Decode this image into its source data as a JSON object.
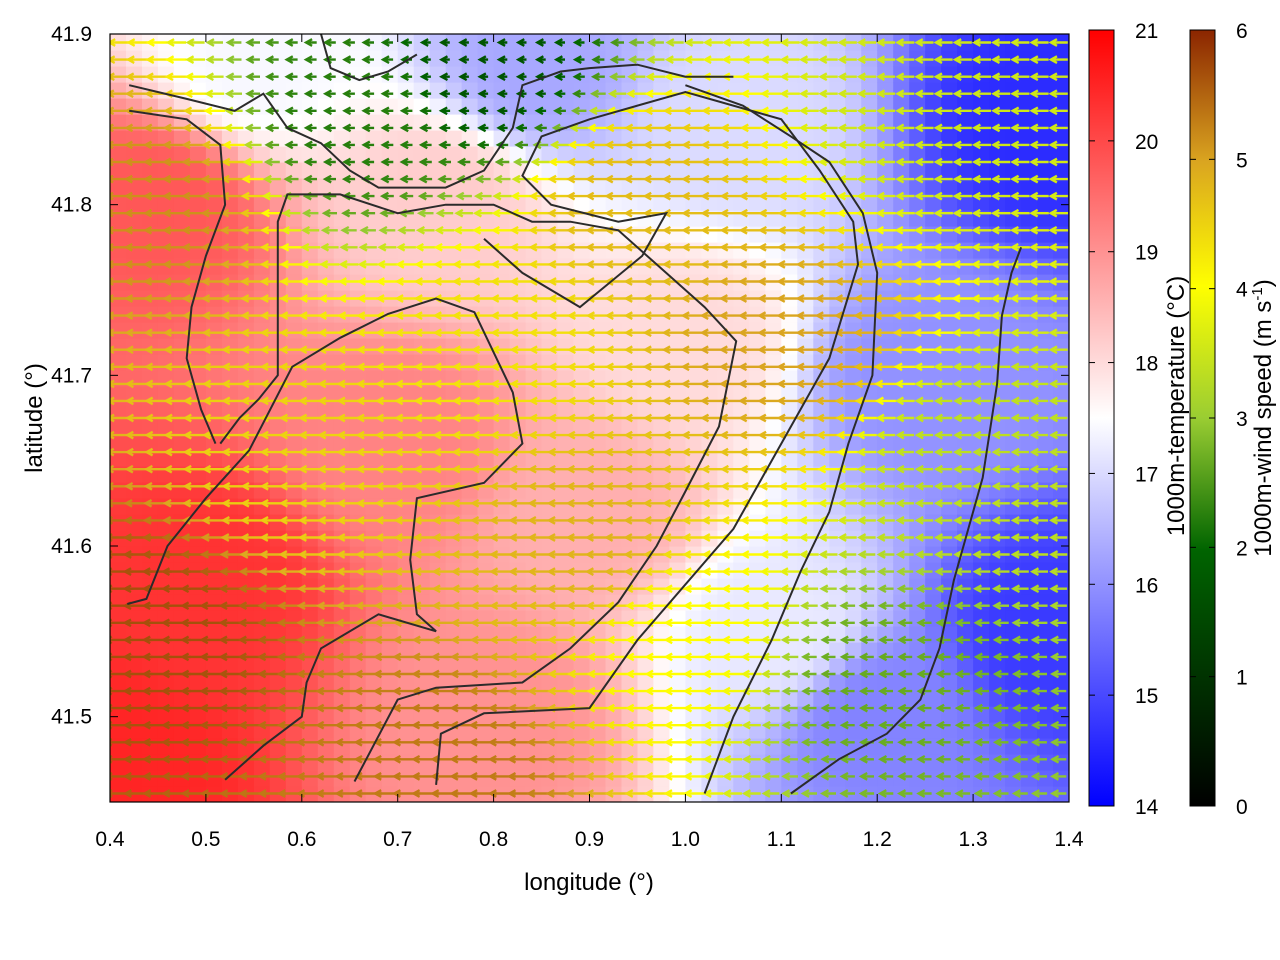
{
  "chart_data": {
    "type": "heatmap",
    "xlabel": "longitude (°)",
    "ylabel": "latitude (°)",
    "xlim": [
      0.4,
      1.4
    ],
    "ylim": [
      41.45,
      41.9
    ],
    "x_ticks": [
      "0.4",
      "0.5",
      "0.6",
      "0.7",
      "0.8",
      "0.9",
      "1.0",
      "1.1",
      "1.2",
      "1.3",
      "1.4"
    ],
    "y_ticks": [
      "41.5",
      "41.6",
      "41.7",
      "41.8",
      "41.9"
    ],
    "temperature_colorbar": {
      "label": "1000m-temperature (°C)",
      "range": [
        14,
        21
      ],
      "ticks": [
        "14",
        "15",
        "16",
        "17",
        "18",
        "19",
        "20",
        "21"
      ],
      "colors": [
        "#0000ff",
        "#ffffff",
        "#ff0000"
      ]
    },
    "windspeed_colorbar": {
      "label_main": "1000m-wind speed (m s",
      "label_sup": "-1",
      "label_end": ")",
      "range": [
        0,
        6
      ],
      "ticks": [
        "0",
        "1",
        "2",
        "3",
        "4",
        "5",
        "6"
      ],
      "colors": [
        "#000000",
        "#006400",
        "#9acd32",
        "#ffff00",
        "#daa520",
        "#8b2500"
      ]
    },
    "temperature_field_approx": [
      {
        "lon": 0.4,
        "lat": 41.47,
        "t": 20.5
      },
      {
        "lon": 0.5,
        "lat": 41.58,
        "t": 20.3
      },
      {
        "lon": 0.45,
        "lat": 41.8,
        "t": 19.8
      },
      {
        "lon": 0.7,
        "lat": 41.66,
        "t": 19.2
      },
      {
        "lon": 0.8,
        "lat": 41.5,
        "t": 19.0
      },
      {
        "lon": 0.9,
        "lat": 41.62,
        "t": 18.6
      },
      {
        "lon": 0.75,
        "lat": 41.8,
        "t": 18.2
      },
      {
        "lon": 1.0,
        "lat": 41.72,
        "t": 18.0
      },
      {
        "lon": 1.1,
        "lat": 41.55,
        "t": 17.2
      },
      {
        "lon": 1.05,
        "lat": 41.85,
        "t": 17.0
      },
      {
        "lon": 0.85,
        "lat": 41.88,
        "t": 16.3
      },
      {
        "lon": 1.25,
        "lat": 41.7,
        "t": 16.0
      },
      {
        "lon": 1.2,
        "lat": 41.5,
        "t": 15.8
      },
      {
        "lon": 1.38,
        "lat": 41.85,
        "t": 14.6
      },
      {
        "lon": 1.38,
        "lat": 41.55,
        "t": 14.8
      },
      {
        "lon": 0.55,
        "lat": 41.88,
        "t": 17.4
      }
    ],
    "windspeed_field_approx": [
      {
        "lon": 0.45,
        "lat": 41.55,
        "s": 5.6
      },
      {
        "lon": 0.45,
        "lat": 41.8,
        "s": 5.0
      },
      {
        "lon": 0.75,
        "lat": 41.47,
        "s": 5.2
      },
      {
        "lon": 1.1,
        "lat": 41.72,
        "s": 4.8
      },
      {
        "lon": 0.8,
        "lat": 41.72,
        "s": 4.0
      },
      {
        "lon": 0.95,
        "lat": 41.8,
        "s": 4.5
      },
      {
        "lon": 0.65,
        "lat": 41.85,
        "s": 1.5
      },
      {
        "lon": 0.8,
        "lat": 41.88,
        "s": 1.0
      },
      {
        "lon": 1.2,
        "lat": 41.52,
        "s": 2.0
      },
      {
        "lon": 1.3,
        "lat": 41.65,
        "s": 2.8
      },
      {
        "lon": 1.25,
        "lat": 41.85,
        "s": 3.0
      },
      {
        "lon": 0.6,
        "lat": 41.65,
        "s": 4.2
      },
      {
        "lon": 1.0,
        "lat": 41.55,
        "s": 3.6
      },
      {
        "lon": 0.9,
        "lat": 41.6,
        "s": 4.6
      }
    ],
    "wind_direction_deg": 270,
    "contour_lines": [
      [
        [
          0.418,
          41.566
        ],
        [
          0.438,
          41.569
        ],
        [
          0.46,
          41.6
        ],
        [
          0.5,
          41.628
        ],
        [
          0.545,
          41.656
        ],
        [
          0.59,
          41.705
        ],
        [
          0.64,
          41.722
        ],
        [
          0.69,
          41.736
        ],
        [
          0.74,
          41.745
        ],
        [
          0.78,
          41.737
        ],
        [
          0.82,
          41.69
        ],
        [
          0.83,
          41.66
        ],
        [
          0.79,
          41.637
        ],
        [
          0.72,
          41.628
        ],
        [
          0.713,
          41.592
        ],
        [
          0.72,
          41.56
        ],
        [
          0.74,
          41.55
        ],
        [
          0.68,
          41.56
        ],
        [
          0.62,
          41.54
        ],
        [
          0.605,
          41.52
        ],
        [
          0.6,
          41.5
        ],
        [
          0.56,
          41.483
        ],
        [
          0.52,
          41.463
        ]
      ],
      [
        [
          0.655,
          41.462
        ],
        [
          0.7,
          41.51
        ],
        [
          0.74,
          41.517
        ],
        [
          0.83,
          41.52
        ],
        [
          0.88,
          41.54
        ],
        [
          0.93,
          41.567
        ],
        [
          0.97,
          41.6
        ],
        [
          1.0,
          41.632
        ],
        [
          1.035,
          41.67
        ],
        [
          1.053,
          41.72
        ],
        [
          1.02,
          41.74
        ],
        [
          0.98,
          41.76
        ],
        [
          0.93,
          41.785
        ],
        [
          0.88,
          41.79
        ],
        [
          0.84,
          41.79
        ],
        [
          0.8,
          41.8
        ],
        [
          0.75,
          41.8
        ],
        [
          0.7,
          41.795
        ],
        [
          0.64,
          41.806
        ],
        [
          0.585,
          41.806
        ],
        [
          0.575,
          41.79
        ],
        [
          0.575,
          41.73
        ],
        [
          0.575,
          41.7
        ],
        [
          0.555,
          41.686
        ],
        [
          0.535,
          41.675
        ],
        [
          0.515,
          41.66
        ]
      ],
      [
        [
          0.74,
          41.46
        ],
        [
          0.745,
          41.49
        ],
        [
          0.79,
          41.502
        ],
        [
          0.9,
          41.505
        ],
        [
          0.95,
          41.545
        ],
        [
          1.05,
          41.61
        ],
        [
          1.1,
          41.66
        ],
        [
          1.15,
          41.71
        ],
        [
          1.18,
          41.765
        ],
        [
          1.175,
          41.79
        ],
        [
          1.14,
          41.82
        ],
        [
          1.1,
          41.85
        ],
        [
          1.0,
          41.866
        ],
        [
          0.9,
          41.85
        ],
        [
          0.85,
          41.84
        ],
        [
          0.83,
          41.817
        ],
        [
          0.86,
          41.8
        ],
        [
          0.93,
          41.79
        ],
        [
          0.98,
          41.795
        ],
        [
          0.955,
          41.77
        ],
        [
          0.89,
          41.74
        ],
        [
          0.83,
          41.76
        ],
        [
          0.79,
          41.78
        ]
      ],
      [
        [
          1.02,
          41.455
        ],
        [
          1.05,
          41.5
        ],
        [
          1.09,
          41.545
        ],
        [
          1.12,
          41.585
        ],
        [
          1.15,
          41.62
        ],
        [
          1.17,
          41.66
        ],
        [
          1.195,
          41.7
        ],
        [
          1.2,
          41.76
        ],
        [
          1.185,
          41.795
        ],
        [
          1.15,
          41.825
        ],
        [
          1.11,
          41.84
        ],
        [
          1.06,
          41.858
        ],
        [
          1.0,
          41.87
        ]
      ],
      [
        [
          1.11,
          41.455
        ],
        [
          1.16,
          41.475
        ],
        [
          1.21,
          41.49
        ],
        [
          1.245,
          41.51
        ],
        [
          1.265,
          41.54
        ],
        [
          1.28,
          41.58
        ],
        [
          1.295,
          41.61
        ],
        [
          1.31,
          41.64
        ],
        [
          1.325,
          41.695
        ],
        [
          1.33,
          41.735
        ],
        [
          1.34,
          41.76
        ],
        [
          1.35,
          41.775
        ]
      ],
      [
        [
          0.42,
          41.87
        ],
        [
          0.48,
          41.862
        ],
        [
          0.53,
          41.855
        ],
        [
          0.56,
          41.865
        ],
        [
          0.585,
          41.845
        ],
        [
          0.62,
          41.836
        ],
        [
          0.65,
          41.82
        ],
        [
          0.68,
          41.81
        ],
        [
          0.75,
          41.81
        ],
        [
          0.79,
          41.82
        ],
        [
          0.82,
          41.845
        ],
        [
          0.83,
          41.87
        ],
        [
          0.87,
          41.878
        ],
        [
          0.9,
          41.88
        ],
        [
          0.95,
          41.882
        ],
        [
          1.0,
          41.875
        ],
        [
          1.05,
          41.875
        ]
      ],
      [
        [
          0.42,
          41.855
        ],
        [
          0.48,
          41.85
        ],
        [
          0.515,
          41.835
        ],
        [
          0.52,
          41.8
        ],
        [
          0.5,
          41.77
        ],
        [
          0.485,
          41.74
        ],
        [
          0.48,
          41.71
        ],
        [
          0.495,
          41.68
        ],
        [
          0.51,
          41.66
        ]
      ],
      [
        [
          0.62,
          41.9
        ],
        [
          0.63,
          41.88
        ],
        [
          0.66,
          41.873
        ],
        [
          0.69,
          41.878
        ],
        [
          0.72,
          41.888
        ]
      ]
    ]
  }
}
